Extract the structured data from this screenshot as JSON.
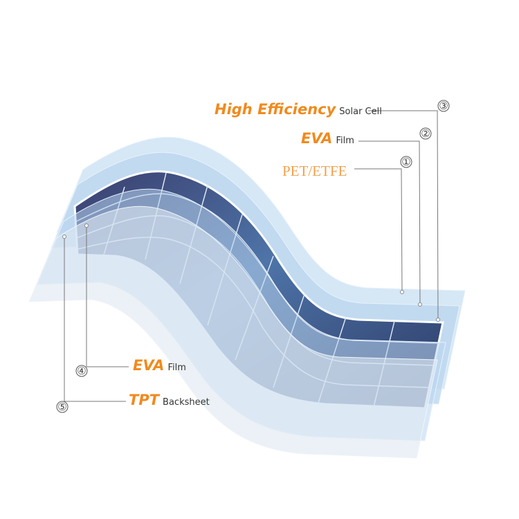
{
  "labels": [
    {
      "number": "③",
      "bold": "High Efficiency",
      "text": "Solar Cell"
    },
    {
      "number": "②",
      "bold": "EVA",
      "text": "Film"
    },
    {
      "number": "①",
      "bold": "PET/ETFE"
    },
    {
      "number": "④",
      "bold": "EVA",
      "text": "Film"
    },
    {
      "number": "⑤",
      "bold": "TPT",
      "text": "Backsheet"
    }
  ]
}
